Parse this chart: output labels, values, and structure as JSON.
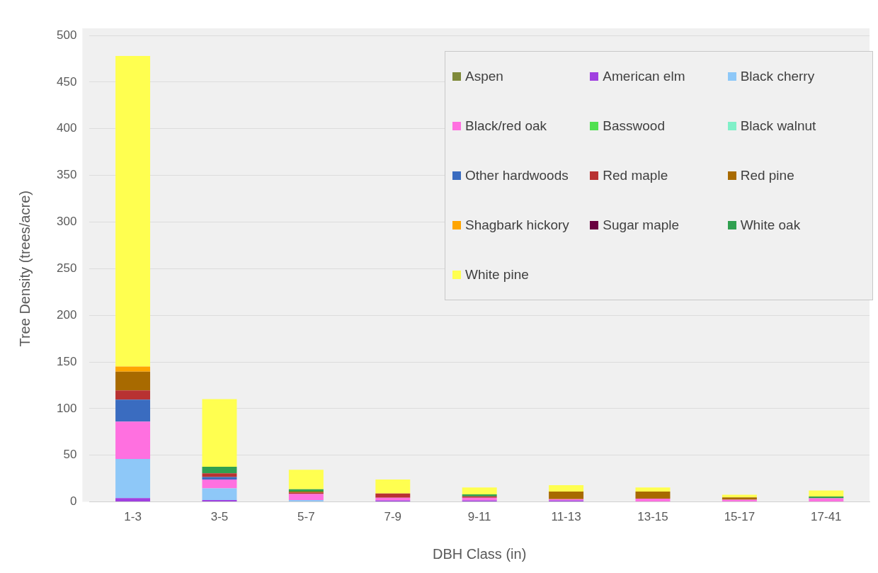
{
  "chart_data": {
    "type": "bar",
    "stacked": true,
    "xlabel": "DBH Class (in)",
    "ylabel": "Tree Density (trees/acre)",
    "categories": [
      "1-3",
      "3-5",
      "5-7",
      "7-9",
      "9-11",
      "11-13",
      "13-15",
      "15-17",
      "17-41"
    ],
    "ylim": [
      0,
      500
    ],
    "yticks": [
      0,
      50,
      100,
      150,
      200,
      250,
      300,
      350,
      400,
      450,
      500
    ],
    "grid": "y",
    "legend": "top right",
    "series": [
      {
        "name": "Aspen",
        "color": "#7f8a3a",
        "values": [
          0,
          0,
          0,
          0,
          0,
          0,
          0,
          0,
          0
        ]
      },
      {
        "name": "American elm",
        "color": "#a040e0",
        "values": [
          4,
          2,
          0,
          1.5,
          1.5,
          1.5,
          0,
          0,
          0
        ]
      },
      {
        "name": "Black cherry",
        "color": "#8ec8f8",
        "values": [
          42,
          12.5,
          2,
          0,
          0,
          0,
          0,
          0,
          0
        ]
      },
      {
        "name": "Black/red oak",
        "color": "#ff70e0",
        "values": [
          40,
          9.5,
          6.5,
          3,
          3,
          1.5,
          3.5,
          2.3,
          3.8
        ]
      },
      {
        "name": "Basswood",
        "color": "#50e050",
        "values": [
          0,
          0,
          0,
          0,
          0,
          0,
          0,
          0,
          0
        ]
      },
      {
        "name": "Black walnut",
        "color": "#80f0c8",
        "values": [
          0,
          0,
          0,
          0,
          0,
          0,
          0,
          0,
          0
        ]
      },
      {
        "name": "Other hardwoods",
        "color": "#3a6cc0",
        "values": [
          23.5,
          2.7,
          0,
          0,
          0,
          0,
          0,
          0,
          0
        ]
      },
      {
        "name": "Red maple",
        "color": "#b83232",
        "values": [
          10,
          4,
          1.5,
          4.5,
          1.5,
          0,
          0,
          0,
          0
        ]
      },
      {
        "name": "Red pine",
        "color": "#a86a00",
        "values": [
          20,
          0,
          1,
          0,
          0,
          8,
          7.6,
          2.5,
          0
        ]
      },
      {
        "name": "Shagbark hickory",
        "color": "#ffa500",
        "values": [
          5.5,
          0,
          0,
          0,
          0,
          0,
          0,
          0,
          0
        ]
      },
      {
        "name": "Sugar maple",
        "color": "#6a0040",
        "values": [
          0,
          0,
          0,
          0,
          0,
          0,
          0,
          0,
          0
        ]
      },
      {
        "name": "White oak",
        "color": "#30a050",
        "values": [
          0,
          7,
          2.5,
          0,
          2,
          0,
          0,
          0,
          2
        ]
      },
      {
        "name": "White pine",
        "color": "#ffff50",
        "values": [
          333,
          72.5,
          21,
          15,
          7.4,
          7,
          4.3,
          2.8,
          6.4
        ]
      }
    ]
  }
}
